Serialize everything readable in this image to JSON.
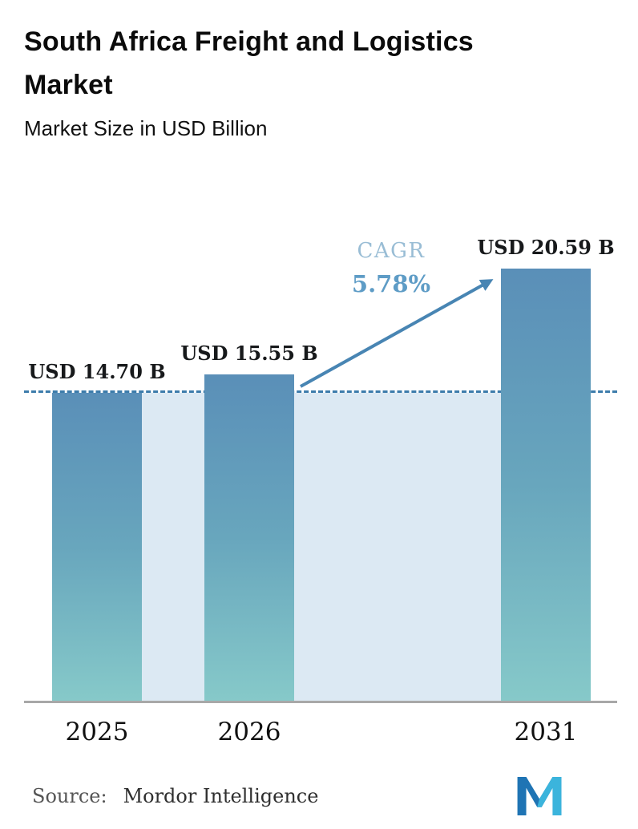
{
  "chart_data": {
    "type": "bar",
    "title": "South Africa Freight and Logistics Market",
    "subtitle": "Market Size in USD Billion",
    "unit": "USD Billion",
    "categories": [
      "2025",
      "2026",
      "2031"
    ],
    "values": [
      14.7,
      15.55,
      20.59
    ],
    "bars": [
      {
        "category": "2025",
        "value": 14.7,
        "label": "USD 14.70 B"
      },
      {
        "category": "2026",
        "value": 15.55,
        "label": "USD 15.55 B"
      },
      {
        "category": "2031",
        "value": 20.59,
        "label": "USD 20.59 B"
      }
    ],
    "cagr": {
      "label": "CAGR",
      "value": "5.78%"
    },
    "baseline_value": 14.7,
    "ylim": [
      0,
      20.59
    ],
    "legend": "none",
    "grid": "off",
    "annotations": [
      "dashed reference line at 2025 level",
      "growth arrow from 2026 bar to 2031 bar"
    ],
    "colors": {
      "bar_top": "#5a8fb8",
      "bar_mid": "#68a6bd",
      "bar_bottom": "#86c9c9",
      "band_fill": "#dce9f3",
      "dashed_line": "#3d7cab",
      "arrow": "#4885b3",
      "cagr_label": "#99bdd5",
      "cagr_value": "#5e9cc6",
      "axis_line": "#a8a8a8"
    }
  },
  "footer": {
    "source_label": "Source:",
    "source_value": "Mordor Intelligence",
    "logo": "mordor-intelligence-logo",
    "logo_colors": {
      "primary": "#1f74b4",
      "secondary": "#3bb4dc"
    }
  }
}
